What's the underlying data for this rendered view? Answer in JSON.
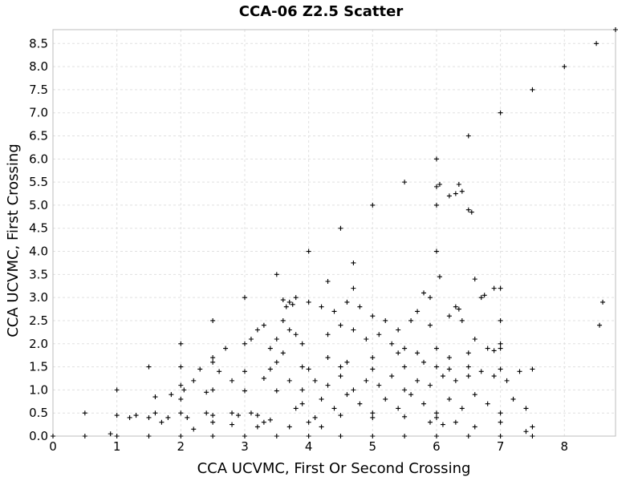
{
  "chart_data": {
    "type": "scatter",
    "title": "CCA-06 Z2.5 Scatter",
    "xlabel": "CCA UCVMC, First Or Second Crossing",
    "ylabel": "CCA UCVMC, First Crossing",
    "xlim": [
      0,
      8.8
    ],
    "ylim": [
      0,
      8.8
    ],
    "x_ticks": [
      "0",
      "1",
      "2",
      "3",
      "4",
      "5",
      "6",
      "7",
      "8"
    ],
    "y_ticks": [
      "0.0",
      "0.5",
      "1.0",
      "1.5",
      "2.0",
      "2.5",
      "3.0",
      "3.5",
      "4.0",
      "4.5",
      "5.0",
      "5.5",
      "6.0",
      "6.5",
      "7.0",
      "7.5",
      "8.0",
      "8.5"
    ],
    "grid": true,
    "marker": "+",
    "marker_color": "#000000",
    "series": [
      {
        "points": [
          [
            0.0,
            0.0
          ],
          [
            0.5,
            0.5
          ],
          [
            1.0,
            1.0
          ],
          [
            1.5,
            1.5
          ],
          [
            2.0,
            2.0
          ],
          [
            2.5,
            2.5
          ],
          [
            3.0,
            3.0
          ],
          [
            3.5,
            3.5
          ],
          [
            4.0,
            4.0
          ],
          [
            4.5,
            4.5
          ],
          [
            5.0,
            5.0
          ],
          [
            5.5,
            5.5
          ],
          [
            6.0,
            6.0
          ],
          [
            6.5,
            6.5
          ],
          [
            7.0,
            7.0
          ],
          [
            7.5,
            7.5
          ],
          [
            8.0,
            8.0
          ],
          [
            8.5,
            8.5
          ],
          [
            8.8,
            8.8
          ],
          [
            0.5,
            0.0
          ],
          [
            1.0,
            0.0
          ],
          [
            1.5,
            0.0
          ],
          [
            2.0,
            0.0
          ],
          [
            2.5,
            0.0
          ],
          [
            3.0,
            0.0
          ],
          [
            3.5,
            0.0
          ],
          [
            4.0,
            0.0
          ],
          [
            4.5,
            0.0
          ],
          [
            5.0,
            0.0
          ],
          [
            5.5,
            0.0
          ],
          [
            6.0,
            0.0
          ],
          [
            6.5,
            0.0
          ],
          [
            7.0,
            0.0
          ],
          [
            7.5,
            0.0
          ],
          [
            2.0,
            1.5
          ],
          [
            2.3,
            1.45
          ],
          [
            2.6,
            1.4
          ],
          [
            3.0,
            1.4
          ],
          [
            3.4,
            1.45
          ],
          [
            3.9,
            1.5
          ],
          [
            2.05,
            1.0
          ],
          [
            2.5,
            1.0
          ],
          [
            3.0,
            0.98
          ],
          [
            3.5,
            0.98
          ],
          [
            3.9,
            1.0
          ],
          [
            2.0,
            0.8
          ],
          [
            2.2,
            1.2
          ],
          [
            2.8,
            1.2
          ],
          [
            3.3,
            1.25
          ],
          [
            3.7,
            1.2
          ],
          [
            1.2,
            0.4
          ],
          [
            1.5,
            0.4
          ],
          [
            1.8,
            0.4
          ],
          [
            2.1,
            0.4
          ],
          [
            2.5,
            0.45
          ],
          [
            2.9,
            0.45
          ],
          [
            3.2,
            0.45
          ],
          [
            3.4,
            0.35
          ],
          [
            1.0,
            0.45
          ],
          [
            1.3,
            0.45
          ],
          [
            1.6,
            0.5
          ],
          [
            2.0,
            0.5
          ],
          [
            2.4,
            0.5
          ],
          [
            2.8,
            0.5
          ],
          [
            3.1,
            0.5
          ],
          [
            0.9,
            0.05
          ],
          [
            1.7,
            0.3
          ],
          [
            2.2,
            0.15
          ],
          [
            2.8,
            0.25
          ],
          [
            3.2,
            0.2
          ],
          [
            3.3,
            0.3
          ],
          [
            2.5,
            0.3
          ],
          [
            1.6,
            0.85
          ],
          [
            1.85,
            0.9
          ],
          [
            2.0,
            1.1
          ],
          [
            2.4,
            0.95
          ],
          [
            2.5,
            1.7
          ],
          [
            2.7,
            1.9
          ],
          [
            3.0,
            2.0
          ],
          [
            3.2,
            2.3
          ],
          [
            3.3,
            2.4
          ],
          [
            3.1,
            2.1
          ],
          [
            2.5,
            1.6
          ],
          [
            3.6,
            2.95
          ],
          [
            3.7,
            2.9
          ],
          [
            3.8,
            3.0
          ],
          [
            3.75,
            2.85
          ],
          [
            3.65,
            2.8
          ],
          [
            3.6,
            2.5
          ],
          [
            3.7,
            2.3
          ],
          [
            3.8,
            2.2
          ],
          [
            3.9,
            2.0
          ],
          [
            3.5,
            2.1
          ],
          [
            3.6,
            1.8
          ],
          [
            3.4,
            1.9
          ],
          [
            3.5,
            1.6
          ],
          [
            4.0,
            2.9
          ],
          [
            4.2,
            2.8
          ],
          [
            4.4,
            2.7
          ],
          [
            4.6,
            2.9
          ],
          [
            4.8,
            2.8
          ],
          [
            5.0,
            2.6
          ],
          [
            5.2,
            2.5
          ],
          [
            5.4,
            2.3
          ],
          [
            5.6,
            2.5
          ],
          [
            4.3,
            2.2
          ],
          [
            4.5,
            2.4
          ],
          [
            4.7,
            2.3
          ],
          [
            4.9,
            2.1
          ],
          [
            5.1,
            2.2
          ],
          [
            5.3,
            2.0
          ],
          [
            5.5,
            1.9
          ],
          [
            5.7,
            1.8
          ],
          [
            5.9,
            2.4
          ],
          [
            4.1,
            1.2
          ],
          [
            4.3,
            1.1
          ],
          [
            4.5,
            1.3
          ],
          [
            4.7,
            1.0
          ],
          [
            4.9,
            1.2
          ],
          [
            5.1,
            1.1
          ],
          [
            5.3,
            1.3
          ],
          [
            5.5,
            1.0
          ],
          [
            5.7,
            1.2
          ],
          [
            5.9,
            1.1
          ],
          [
            6.1,
            1.3
          ],
          [
            6.3,
            1.2
          ],
          [
            6.5,
            1.3
          ],
          [
            6.7,
            1.4
          ],
          [
            6.9,
            1.3
          ],
          [
            7.1,
            1.2
          ],
          [
            7.3,
            1.4
          ],
          [
            7.5,
            1.45
          ],
          [
            4.2,
            0.8
          ],
          [
            4.4,
            0.6
          ],
          [
            4.6,
            0.9
          ],
          [
            4.8,
            0.7
          ],
          [
            5.0,
            0.5
          ],
          [
            5.2,
            0.8
          ],
          [
            5.4,
            0.6
          ],
          [
            5.6,
            0.9
          ],
          [
            5.8,
            0.7
          ],
          [
            6.0,
            0.5
          ],
          [
            6.2,
            0.8
          ],
          [
            6.4,
            0.6
          ],
          [
            6.6,
            0.9
          ],
          [
            6.8,
            0.7
          ],
          [
            7.0,
            0.5
          ],
          [
            7.2,
            0.8
          ],
          [
            7.4,
            0.6
          ],
          [
            4.1,
            0.4
          ],
          [
            4.5,
            0.45
          ],
          [
            5.0,
            0.4
          ],
          [
            5.5,
            0.42
          ],
          [
            6.0,
            0.4
          ],
          [
            6.3,
            0.3
          ],
          [
            6.6,
            0.2
          ],
          [
            7.0,
            0.3
          ],
          [
            7.4,
            0.1
          ],
          [
            7.5,
            0.2
          ],
          [
            4.0,
            1.45
          ],
          [
            4.5,
            1.5
          ],
          [
            5.0,
            1.45
          ],
          [
            5.5,
            1.5
          ],
          [
            6.0,
            1.5
          ],
          [
            6.2,
            1.45
          ],
          [
            5.9,
            0.3
          ],
          [
            6.1,
            0.25
          ],
          [
            6.5,
            1.5
          ],
          [
            7.0,
            1.45
          ],
          [
            4.3,
            1.7
          ],
          [
            4.6,
            1.6
          ],
          [
            5.0,
            1.7
          ],
          [
            5.4,
            1.8
          ],
          [
            5.8,
            1.6
          ],
          [
            6.0,
            1.9
          ],
          [
            6.2,
            1.7
          ],
          [
            6.5,
            1.8
          ],
          [
            6.8,
            1.9
          ],
          [
            7.0,
            2.0
          ],
          [
            6.6,
            2.1
          ],
          [
            3.9,
            0.7
          ],
          [
            3.8,
            0.6
          ],
          [
            4.0,
            0.3
          ],
          [
            3.7,
            0.2
          ],
          [
            4.2,
            0.2
          ],
          [
            6.0,
            5.4
          ],
          [
            6.05,
            5.45
          ],
          [
            6.2,
            5.2
          ],
          [
            6.3,
            5.25
          ],
          [
            6.35,
            5.45
          ],
          [
            6.4,
            5.3
          ],
          [
            6.5,
            4.9
          ],
          [
            6.55,
            4.85
          ],
          [
            6.0,
            5.0
          ],
          [
            6.0,
            4.0
          ],
          [
            6.05,
            3.45
          ],
          [
            6.6,
            3.4
          ],
          [
            6.9,
            3.2
          ],
          [
            7.0,
            3.2
          ],
          [
            6.7,
            3.0
          ],
          [
            6.75,
            3.05
          ],
          [
            6.3,
            2.8
          ],
          [
            6.35,
            2.75
          ],
          [
            7.0,
            2.5
          ],
          [
            5.9,
            3.0
          ],
          [
            6.2,
            2.6
          ],
          [
            6.4,
            2.5
          ],
          [
            7.0,
            1.9
          ],
          [
            6.9,
            1.85
          ],
          [
            4.7,
            3.75
          ],
          [
            4.3,
            3.35
          ],
          [
            4.7,
            3.2
          ],
          [
            5.8,
            3.1
          ],
          [
            5.7,
            2.7
          ],
          [
            8.6,
            2.9
          ],
          [
            8.55,
            2.4
          ]
        ]
      }
    ]
  }
}
